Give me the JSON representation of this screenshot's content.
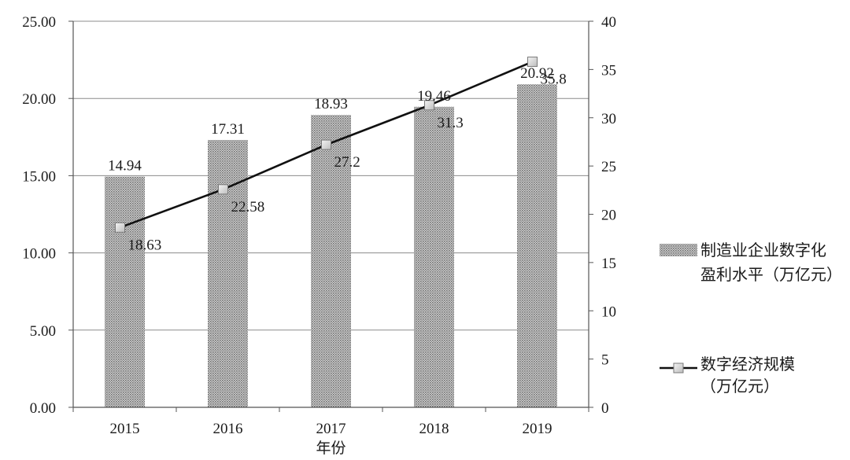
{
  "chart_data": {
    "type": "bar",
    "categories": [
      "2015",
      "2016",
      "2017",
      "2018",
      "2019"
    ],
    "xlabel": "年份",
    "y_left": {
      "min": 0,
      "max": 25,
      "step": 5,
      "tick_labels": [
        "0.00",
        "5.00",
        "10.00",
        "15.00",
        "20.00",
        "25.00"
      ]
    },
    "y_right": {
      "min": 0,
      "max": 40,
      "step": 5,
      "tick_labels": [
        "0",
        "5",
        "10",
        "15",
        "20",
        "25",
        "30",
        "35",
        "40"
      ]
    },
    "grid": true,
    "legend_position": "right",
    "series": [
      {
        "name_lines": [
          "制造业企业数字化",
          "盈利水平（万亿元）"
        ],
        "type": "bar",
        "axis": "left",
        "values": [
          14.94,
          17.31,
          18.93,
          19.46,
          20.92
        ],
        "labels": [
          "14.94",
          "17.31",
          "18.93",
          "19.46",
          "20.92"
        ],
        "color": "#9a9a9a"
      },
      {
        "name_lines": [
          "数字经济规模",
          "（万亿元）"
        ],
        "type": "line",
        "axis": "right",
        "values": [
          18.63,
          22.58,
          27.2,
          31.3,
          35.8
        ],
        "labels": [
          "18.63",
          "22.58",
          "27.2",
          "31.3",
          "35.8"
        ],
        "color": "#111111",
        "marker": "square"
      }
    ]
  }
}
